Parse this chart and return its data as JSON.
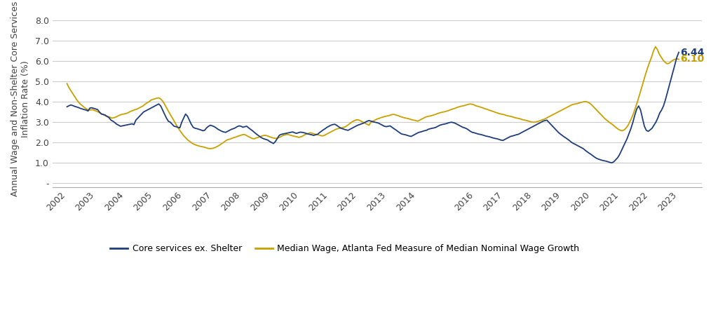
{
  "title": "",
  "ylabel": "Annual Wage and Non-Shelter Core Services\nInflation Rate (%)",
  "ylim": [
    -0.2,
    8.5
  ],
  "yticks": [
    0,
    1.0,
    2.0,
    3.0,
    4.0,
    5.0,
    6.0,
    7.0,
    8.0
  ],
  "ytick_labels": [
    "-",
    "1.0",
    "2.0",
    "3.0",
    "4.0",
    "5.0",
    "6.0",
    "7.0",
    "8.0"
  ],
  "line1_color": "#1f3d7a",
  "line2_color": "#c8a000",
  "line1_label": "Core services ex. Shelter",
  "line2_label": "Median Wage, Atlanta Fed Measure of Median Nominal Wage Growth",
  "line1_end_value": "6.44",
  "line2_end_value": "6.10",
  "background_color": "#ffffff",
  "grid_color": "#cccccc",
  "core_services": [
    3.76,
    3.81,
    3.85,
    3.82,
    3.78,
    3.75,
    3.72,
    3.68,
    3.65,
    3.62,
    3.6,
    3.55,
    3.7,
    3.71,
    3.68,
    3.65,
    3.62,
    3.5,
    3.4,
    3.38,
    3.35,
    3.28,
    3.22,
    3.1,
    3.05,
    2.98,
    2.9,
    2.85,
    2.8,
    2.82,
    2.84,
    2.86,
    2.88,
    2.9,
    2.92,
    2.88,
    3.1,
    3.2,
    3.3,
    3.4,
    3.5,
    3.55,
    3.6,
    3.65,
    3.7,
    3.75,
    3.8,
    3.85,
    3.9,
    3.8,
    3.6,
    3.4,
    3.2,
    3.05,
    3.0,
    2.9,
    2.8,
    2.78,
    2.75,
    2.72,
    3.0,
    3.2,
    3.4,
    3.3,
    3.1,
    2.9,
    2.75,
    2.7,
    2.68,
    2.65,
    2.62,
    2.58,
    2.6,
    2.72,
    2.8,
    2.85,
    2.82,
    2.78,
    2.72,
    2.65,
    2.6,
    2.55,
    2.52,
    2.5,
    2.55,
    2.6,
    2.65,
    2.68,
    2.72,
    2.78,
    2.82,
    2.8,
    2.75,
    2.78,
    2.8,
    2.72,
    2.65,
    2.58,
    2.5,
    2.42,
    2.35,
    2.28,
    2.22,
    2.18,
    2.15,
    2.12,
    2.05,
    2.0,
    1.95,
    2.05,
    2.2,
    2.35,
    2.4,
    2.42,
    2.44,
    2.46,
    2.48,
    2.5,
    2.52,
    2.48,
    2.45,
    2.48,
    2.51,
    2.5,
    2.48,
    2.45,
    2.42,
    2.4,
    2.38,
    2.35,
    2.38,
    2.4,
    2.48,
    2.55,
    2.62,
    2.68,
    2.75,
    2.8,
    2.85,
    2.88,
    2.9,
    2.85,
    2.78,
    2.72,
    2.68,
    2.65,
    2.62,
    2.6,
    2.65,
    2.7,
    2.75,
    2.8,
    2.85,
    2.88,
    2.92,
    2.95,
    3.0,
    3.05,
    3.08,
    3.05,
    3.02,
    3.0,
    2.98,
    2.95,
    2.9,
    2.85,
    2.8,
    2.78,
    2.8,
    2.82,
    2.75,
    2.68,
    2.62,
    2.55,
    2.48,
    2.42,
    2.4,
    2.38,
    2.35,
    2.32,
    2.3,
    2.35,
    2.4,
    2.45,
    2.5,
    2.52,
    2.55,
    2.58,
    2.6,
    2.65,
    2.68,
    2.7,
    2.72,
    2.75,
    2.8,
    2.85,
    2.88,
    2.9,
    2.92,
    2.95,
    2.98,
    3.0,
    2.98,
    2.95,
    2.9,
    2.85,
    2.8,
    2.75,
    2.72,
    2.68,
    2.62,
    2.55,
    2.5,
    2.48,
    2.45,
    2.42,
    2.4,
    2.38,
    2.35,
    2.32,
    2.3,
    2.28,
    2.25,
    2.22,
    2.2,
    2.18,
    2.15,
    2.12,
    2.1,
    2.15,
    2.2,
    2.25,
    2.3,
    2.32,
    2.35,
    2.38,
    2.4,
    2.45,
    2.5,
    2.55,
    2.6,
    2.65,
    2.7,
    2.75,
    2.8,
    2.85,
    2.9,
    2.95,
    3.0,
    3.05,
    3.08,
    3.1,
    3.0,
    2.9,
    2.8,
    2.7,
    2.6,
    2.5,
    2.42,
    2.35,
    2.28,
    2.22,
    2.15,
    2.08,
    2.0,
    1.95,
    1.9,
    1.85,
    1.8,
    1.75,
    1.7,
    1.62,
    1.55,
    1.48,
    1.42,
    1.35,
    1.28,
    1.22,
    1.18,
    1.15,
    1.12,
    1.1,
    1.08,
    1.05,
    1.02,
    1.0,
    1.05,
    1.15,
    1.25,
    1.4,
    1.6,
    1.8,
    2.0,
    2.2,
    2.45,
    2.7,
    3.0,
    3.35,
    3.65,
    3.8,
    3.6,
    3.2,
    2.8,
    2.6,
    2.55,
    2.62,
    2.7,
    2.85,
    3.0,
    3.2,
    3.45,
    3.6,
    3.8,
    4.1,
    4.45,
    4.8,
    5.15,
    5.5,
    5.85,
    6.2,
    6.44
  ],
  "median_wage": [
    4.9,
    4.7,
    4.55,
    4.4,
    4.25,
    4.1,
    3.98,
    3.88,
    3.8,
    3.72,
    3.65,
    3.6,
    3.6,
    3.62,
    3.58,
    3.55,
    3.5,
    3.45,
    3.4,
    3.35,
    3.3,
    3.28,
    3.25,
    3.2,
    3.22,
    3.25,
    3.3,
    3.35,
    3.38,
    3.4,
    3.42,
    3.45,
    3.5,
    3.55,
    3.58,
    3.62,
    3.65,
    3.7,
    3.75,
    3.8,
    3.88,
    3.95,
    4.0,
    4.08,
    4.12,
    4.15,
    4.18,
    4.2,
    4.15,
    4.05,
    3.9,
    3.72,
    3.55,
    3.38,
    3.22,
    3.05,
    2.88,
    2.72,
    2.58,
    2.45,
    2.32,
    2.22,
    2.12,
    2.05,
    1.98,
    1.92,
    1.88,
    1.85,
    1.82,
    1.8,
    1.78,
    1.75,
    1.72,
    1.7,
    1.7,
    1.72,
    1.75,
    1.8,
    1.85,
    1.92,
    1.98,
    2.05,
    2.12,
    2.15,
    2.18,
    2.22,
    2.25,
    2.28,
    2.32,
    2.35,
    2.38,
    2.4,
    2.35,
    2.3,
    2.25,
    2.2,
    2.18,
    2.22,
    2.25,
    2.28,
    2.32,
    2.35,
    2.35,
    2.32,
    2.28,
    2.25,
    2.22,
    2.2,
    2.22,
    2.25,
    2.3,
    2.35,
    2.38,
    2.4,
    2.38,
    2.35,
    2.32,
    2.3,
    2.28,
    2.25,
    2.28,
    2.32,
    2.38,
    2.42,
    2.45,
    2.48,
    2.45,
    2.42,
    2.4,
    2.38,
    2.35,
    2.32,
    2.35,
    2.4,
    2.45,
    2.5,
    2.55,
    2.6,
    2.65,
    2.68,
    2.7,
    2.72,
    2.75,
    2.78,
    2.85,
    2.92,
    3.0,
    3.05,
    3.1,
    3.12,
    3.1,
    3.05,
    3.0,
    2.95,
    2.9,
    2.85,
    3.0,
    3.05,
    3.1,
    3.15,
    3.18,
    3.22,
    3.25,
    3.28,
    3.3,
    3.32,
    3.35,
    3.38,
    3.38,
    3.35,
    3.32,
    3.28,
    3.25,
    3.22,
    3.2,
    3.18,
    3.15,
    3.12,
    3.1,
    3.08,
    3.05,
    3.1,
    3.15,
    3.2,
    3.25,
    3.28,
    3.3,
    3.32,
    3.35,
    3.38,
    3.42,
    3.45,
    3.48,
    3.5,
    3.52,
    3.55,
    3.58,
    3.62,
    3.65,
    3.68,
    3.72,
    3.75,
    3.78,
    3.8,
    3.82,
    3.85,
    3.88,
    3.9,
    3.88,
    3.85,
    3.8,
    3.78,
    3.75,
    3.72,
    3.68,
    3.65,
    3.62,
    3.58,
    3.55,
    3.52,
    3.48,
    3.45,
    3.42,
    3.4,
    3.38,
    3.35,
    3.32,
    3.3,
    3.28,
    3.25,
    3.22,
    3.2,
    3.18,
    3.15,
    3.12,
    3.1,
    3.08,
    3.05,
    3.02,
    3.0,
    3.0,
    3.02,
    3.05,
    3.08,
    3.12,
    3.15,
    3.2,
    3.25,
    3.3,
    3.35,
    3.4,
    3.45,
    3.5,
    3.55,
    3.6,
    3.65,
    3.7,
    3.75,
    3.8,
    3.85,
    3.88,
    3.9,
    3.92,
    3.95,
    3.98,
    4.0,
    4.02,
    4.0,
    3.95,
    3.88,
    3.78,
    3.68,
    3.58,
    3.48,
    3.38,
    3.28,
    3.18,
    3.1,
    3.02,
    2.95,
    2.88,
    2.8,
    2.72,
    2.65,
    2.6,
    2.58,
    2.62,
    2.72,
    2.85,
    3.05,
    3.25,
    3.5,
    3.78,
    4.08,
    4.4,
    4.72,
    5.05,
    5.38,
    5.68,
    5.95,
    6.2,
    6.5,
    6.72,
    6.58,
    6.35,
    6.2,
    6.05,
    5.95,
    5.88,
    5.9,
    5.98,
    6.05,
    6.1,
    6.12,
    6.1
  ],
  "start_year": 2002,
  "end_year": 2023,
  "x_tick_years": [
    2002,
    2003,
    2004,
    2005,
    2006,
    2007,
    2008,
    2009,
    2010,
    2011,
    2012,
    2013,
    2014,
    2016,
    2017,
    2018,
    2019,
    2020,
    2021,
    2022,
    2023
  ]
}
